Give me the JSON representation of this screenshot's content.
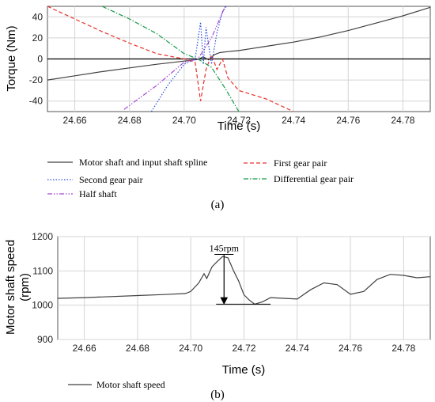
{
  "chart_data": [
    {
      "type": "line",
      "caption": "(a)",
      "xlabel": "Time (s)",
      "ylabel": "Torque (Nm)",
      "xlim": [
        24.65,
        24.79
      ],
      "ylim": [
        -50,
        50
      ],
      "xticks": [
        24.66,
        24.68,
        24.7,
        24.72,
        24.74,
        24.76,
        24.78
      ],
      "yticks": [
        -40,
        -20,
        0,
        20,
        40
      ],
      "grid": true,
      "zero_line": true,
      "legend_position": "below",
      "series": [
        {
          "name": "Motor shaft and input shaft spline",
          "color": "#404040",
          "style": "solid",
          "x": [
            24.65,
            24.66,
            24.67,
            24.68,
            24.69,
            24.7,
            24.705,
            24.707,
            24.709,
            24.711,
            24.713,
            24.716,
            24.72,
            24.725,
            24.73,
            24.74,
            24.75,
            24.76,
            24.77,
            24.78,
            24.79
          ],
          "y": [
            -20,
            -16,
            -12,
            -8.5,
            -5,
            -2,
            -0.5,
            2,
            -1,
            4,
            6,
            7,
            8,
            10,
            12,
            16,
            21,
            27,
            34,
            41,
            49
          ]
        },
        {
          "name": "First gear pair",
          "color": "#e8302a",
          "style": "dashed",
          "x": [
            24.65,
            24.66,
            24.67,
            24.68,
            24.69,
            24.7,
            24.704,
            24.706,
            24.708,
            24.71,
            24.712,
            24.714,
            24.716,
            24.72,
            24.73,
            24.74
          ],
          "y": [
            50,
            38,
            26,
            15,
            5,
            0,
            -3,
            -40,
            -10,
            4,
            -10,
            0,
            -18,
            -30,
            -38,
            -50
          ]
        },
        {
          "name": "Second gear pair",
          "color": "#2a4fd8",
          "style": "dotted",
          "x": [
            24.688,
            24.694,
            24.7,
            24.704,
            24.706,
            24.707,
            24.708,
            24.71,
            24.712,
            24.714,
            24.716
          ],
          "y": [
            -50,
            -25,
            -5,
            0,
            35,
            -5,
            30,
            -5,
            25,
            45,
            52
          ]
        },
        {
          "name": "Differential gear pair",
          "color": "#159a4a",
          "style": "dashdot",
          "x": [
            24.67,
            24.68,
            24.69,
            24.7,
            24.705,
            24.71,
            24.715,
            24.72
          ],
          "y": [
            50,
            38,
            24,
            5,
            0,
            -8,
            -28,
            -50
          ]
        },
        {
          "name": "Half shaft",
          "color": "#a24ad8",
          "style": "dashdotdot",
          "x": [
            24.678,
            24.69,
            24.7,
            24.705,
            24.71,
            24.715
          ],
          "y": [
            -48,
            -25,
            -3,
            0,
            20,
            50
          ]
        }
      ]
    },
    {
      "type": "line",
      "caption": "(b)",
      "xlabel": "Time (s)",
      "ylabel": [
        "Motor shaft speed",
        "(rpm)"
      ],
      "xlim": [
        24.65,
        24.79
      ],
      "ylim": [
        900,
        1200
      ],
      "xticks": [
        24.66,
        24.68,
        24.7,
        24.72,
        24.74,
        24.76,
        24.78
      ],
      "yticks": [
        900,
        1000,
        1100,
        1200
      ],
      "grid": true,
      "legend_position": "below",
      "annotation": {
        "text": "145rpm",
        "x": 24.7125,
        "y_top": 1148,
        "y_bottom": 1003
      },
      "series": [
        {
          "name": "Motor shaft speed",
          "color": "#404040",
          "style": "solid",
          "x": [
            24.65,
            24.66,
            24.67,
            24.68,
            24.69,
            24.698,
            24.7,
            24.703,
            24.705,
            24.706,
            24.708,
            24.71,
            24.712,
            24.714,
            24.716,
            24.718,
            24.72,
            24.722,
            24.724,
            24.727,
            24.73,
            24.735,
            24.74,
            24.745,
            24.75,
            24.755,
            24.76,
            24.765,
            24.77,
            24.775,
            24.78,
            24.785,
            24.79
          ],
          "y": [
            1020,
            1022,
            1025,
            1028,
            1031,
            1034,
            1040,
            1065,
            1092,
            1078,
            1112,
            1128,
            1142,
            1138,
            1102,
            1070,
            1030,
            1015,
            1003,
            1010,
            1022,
            1020,
            1018,
            1045,
            1065,
            1060,
            1032,
            1040,
            1075,
            1090,
            1087,
            1080,
            1083
          ]
        }
      ]
    }
  ]
}
